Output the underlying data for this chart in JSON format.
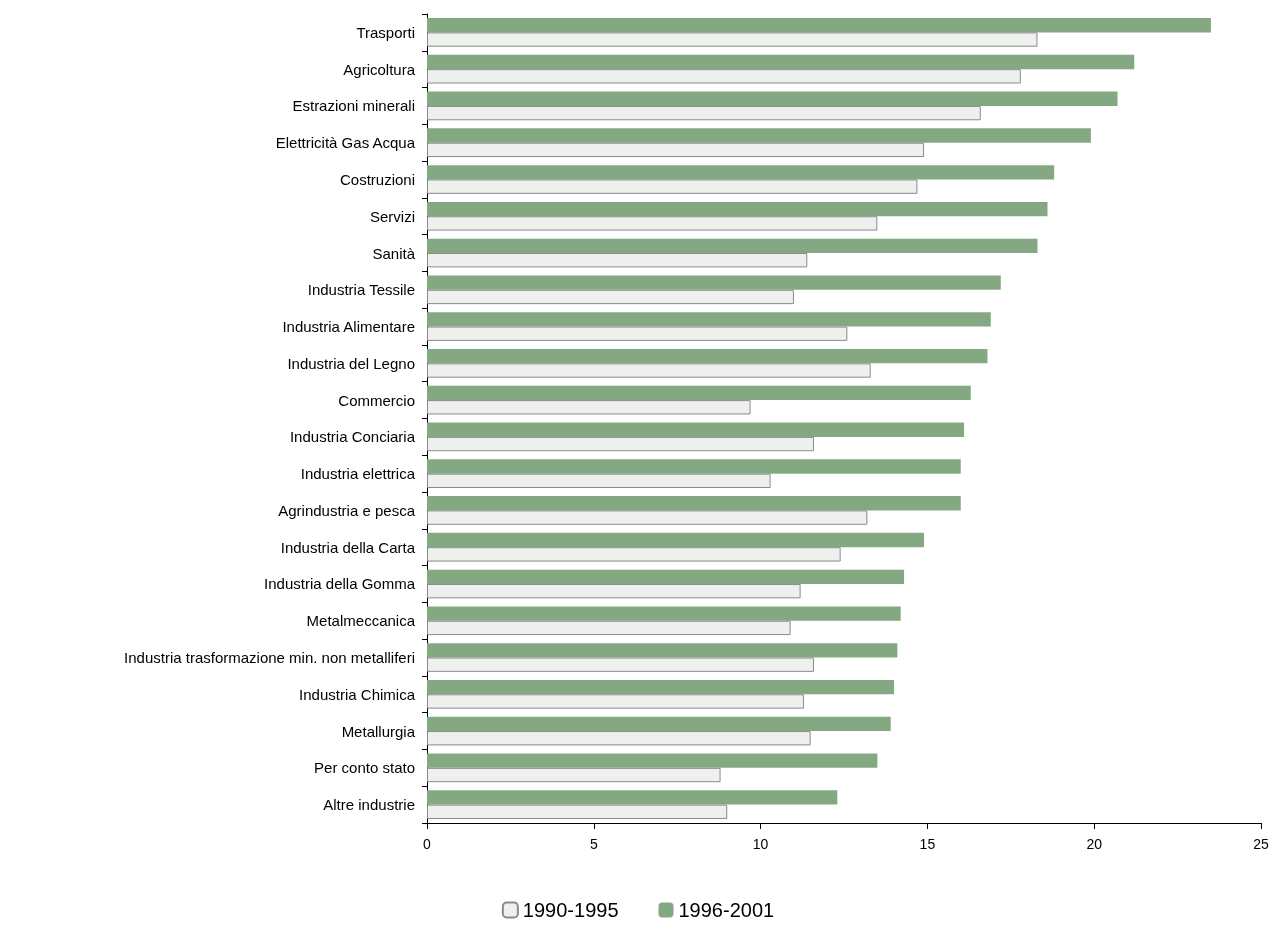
{
  "chart_data": {
    "type": "bar",
    "orientation": "horizontal",
    "categories": [
      "Trasporti",
      "Agricoltura",
      "Estrazioni minerali",
      "Elettricità Gas Acqua",
      "Costruzioni",
      "Servizi",
      "Sanità",
      "Industria Tessile",
      "Industria Alimentare",
      "Industria del Legno",
      "Commercio",
      "Industria Conciaria",
      "Industria elettrica",
      "Agrindustria e pesca",
      "Industria della Carta",
      "Industria della Gomma",
      "Metalmeccanica",
      "Industria trasformazione min. non metalliferi",
      "Industria Chimica",
      "Metallurgia",
      "Per conto stato",
      "Altre industrie"
    ],
    "series": [
      {
        "name": "1990-1995",
        "color": "#eef0ee",
        "values": [
          18.3,
          17.8,
          16.6,
          14.9,
          14.7,
          13.5,
          11.4,
          11.0,
          12.6,
          13.3,
          9.7,
          11.6,
          10.3,
          13.2,
          12.4,
          11.2,
          10.9,
          11.6,
          11.3,
          11.5,
          8.8,
          9.0
        ]
      },
      {
        "name": "1996-2001",
        "color": "#84a982",
        "values": [
          23.5,
          21.2,
          20.7,
          19.9,
          18.8,
          18.6,
          18.3,
          17.2,
          16.9,
          16.8,
          16.3,
          16.1,
          16.0,
          16.0,
          14.9,
          14.3,
          14.2,
          14.1,
          14.0,
          13.9,
          13.5,
          12.3
        ]
      }
    ],
    "xlim": [
      0,
      25
    ],
    "xticks": [
      0,
      5,
      10,
      15,
      20,
      25
    ],
    "grid": false,
    "legend": "bottom"
  }
}
